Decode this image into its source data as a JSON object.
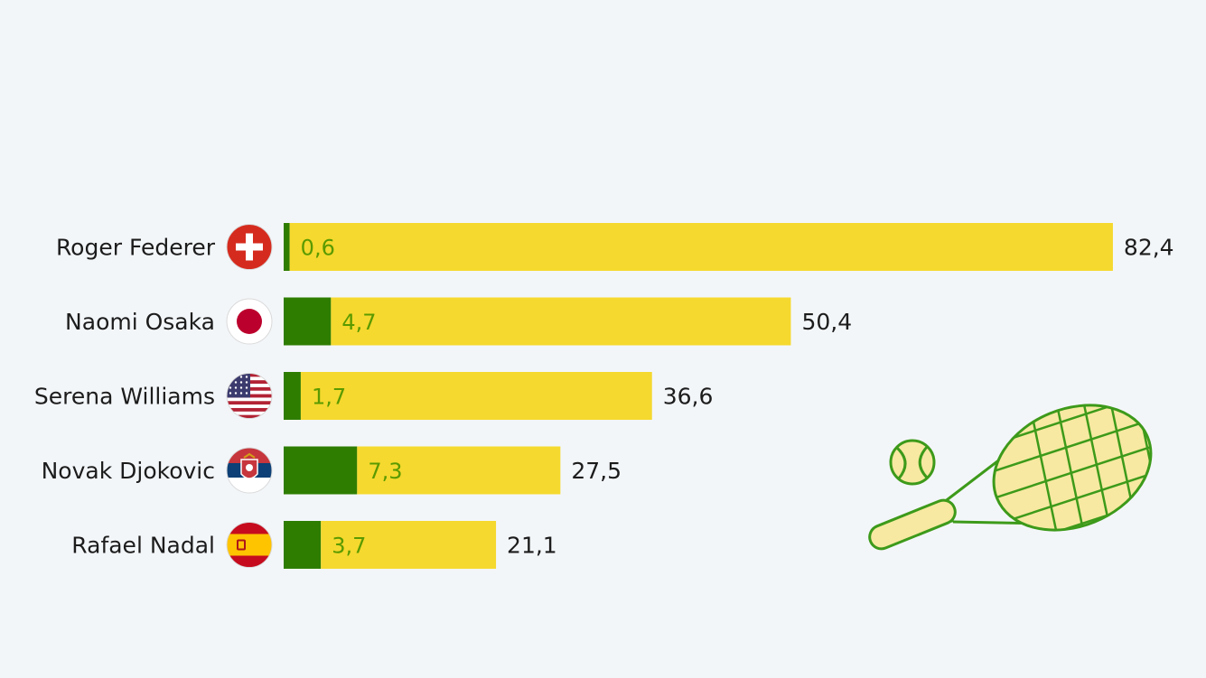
{
  "chart_data": {
    "type": "bar",
    "orientation": "horizontal",
    "stacked": true,
    "categories": [
      "Roger Federer",
      "Naomi Osaka",
      "Serena Williams",
      "Novak Djokovic",
      "Rafael Nadal"
    ],
    "flags": [
      "switzerland-flag",
      "japan-flag",
      "usa-flag",
      "serbia-flag",
      "spain-flag"
    ],
    "series": [
      {
        "values": [
          0.6,
          4.7,
          1.7,
          7.3,
          3.7
        ],
        "labels": [
          "0,6",
          "4,7",
          "1,7",
          "7,3",
          "3,7"
        ],
        "color": "#2e7d00"
      },
      {
        "values": [
          81.8,
          45.7,
          34.9,
          20.2,
          17.4
        ],
        "color": "#f5d92e"
      }
    ],
    "totals": [
      82.4,
      50.4,
      36.6,
      27.5,
      21.1
    ],
    "total_labels": [
      "82,4",
      "50,4",
      "36,6",
      "27,5",
      "21,1"
    ],
    "inner_label_color": "#5a9a00",
    "title": "",
    "xlabel": "",
    "ylabel": "",
    "grid": false,
    "legend": "none"
  },
  "decoration": {
    "illustration": "tennis-racket-and-ball-icon",
    "line_color": "#3d9a1a",
    "fill_color": "#f7e9a1"
  }
}
